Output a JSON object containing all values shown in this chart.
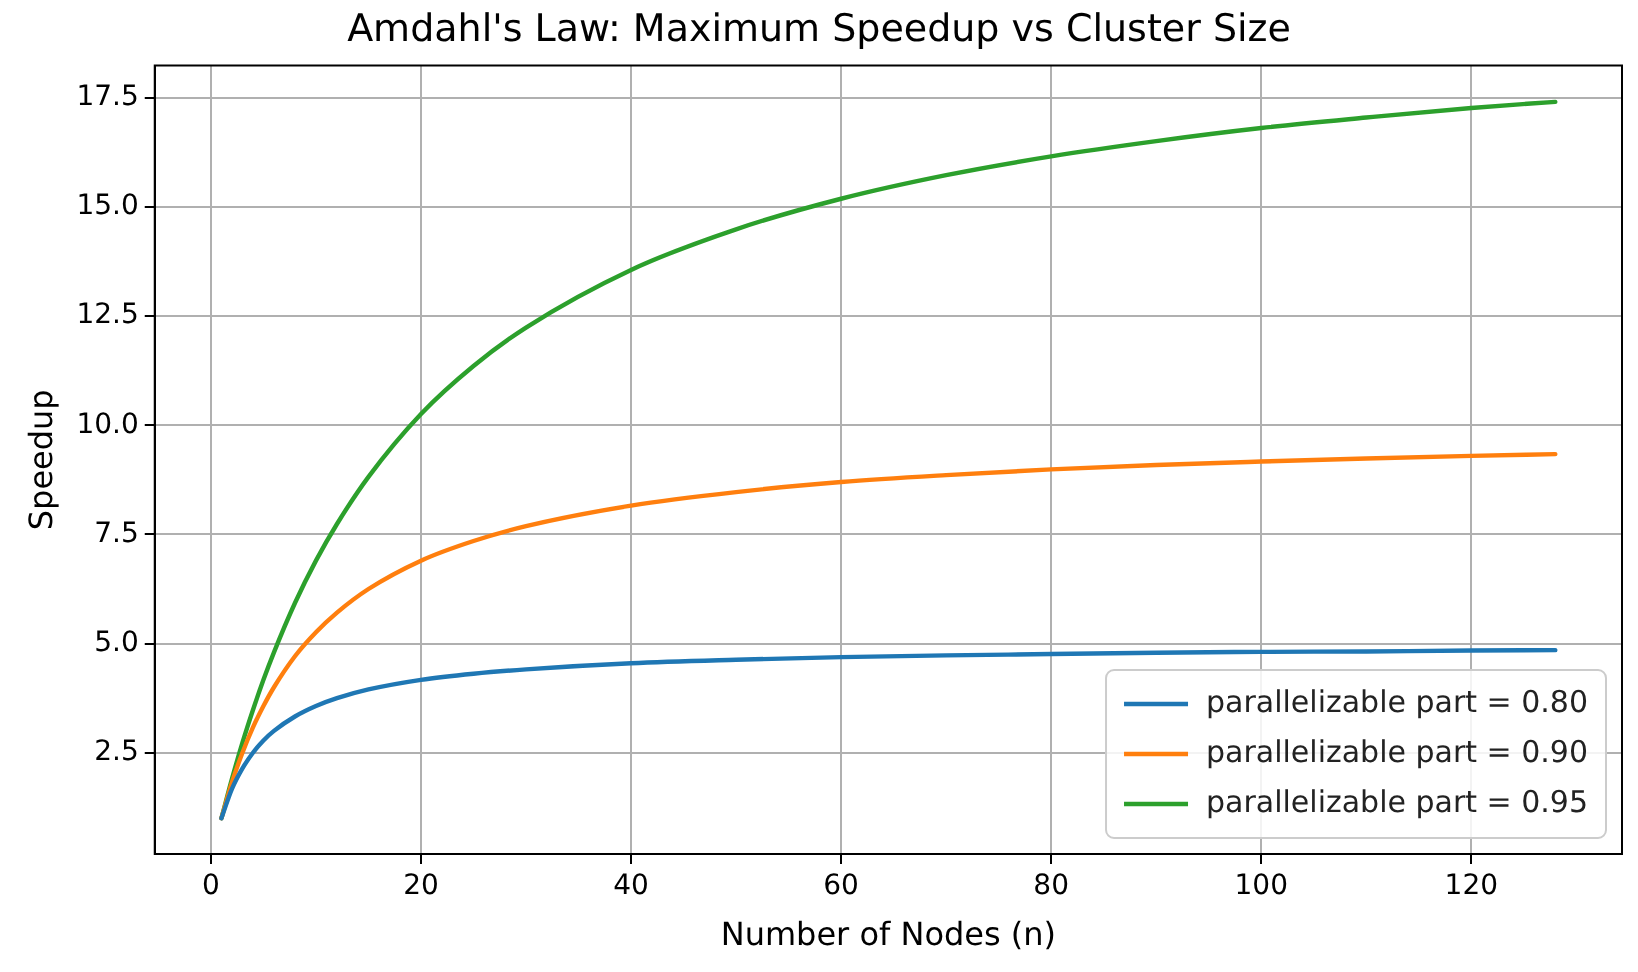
{
  "chart_data": {
    "type": "line",
    "title": "Amdahl's Law: Maximum Speedup vs Cluster Size",
    "xlabel": "Number of Nodes (n)",
    "ylabel": "Speedup",
    "x": [
      1,
      2,
      3,
      4,
      5,
      6,
      8,
      10,
      12,
      15,
      20,
      25,
      30,
      40,
      50,
      60,
      70,
      80,
      90,
      100,
      110,
      120,
      128
    ],
    "series": [
      {
        "name": "parallelizable part = 0.80",
        "color": "#1f77b4",
        "values": [
          1,
          1.67,
          2.14,
          2.5,
          2.78,
          3.0,
          3.33,
          3.57,
          3.75,
          3.95,
          4.17,
          4.31,
          4.41,
          4.55,
          4.63,
          4.69,
          4.73,
          4.76,
          4.79,
          4.81,
          4.82,
          4.84,
          4.85
        ]
      },
      {
        "name": "parallelizable part = 0.90",
        "color": "#ff7f0e",
        "values": [
          1,
          1.82,
          2.5,
          3.08,
          3.57,
          4.0,
          4.71,
          5.26,
          5.71,
          6.25,
          6.9,
          7.35,
          7.69,
          8.16,
          8.47,
          8.7,
          8.86,
          8.99,
          9.09,
          9.17,
          9.24,
          9.3,
          9.34
        ]
      },
      {
        "name": "parallelizable part = 0.95",
        "color": "#2ca02c",
        "values": [
          1,
          1.9,
          2.73,
          3.48,
          4.17,
          4.8,
          5.93,
          6.9,
          7.74,
          8.82,
          10.26,
          11.36,
          12.24,
          13.56,
          14.49,
          15.19,
          15.73,
          16.16,
          16.51,
          16.81,
          17.05,
          17.27,
          17.41
        ]
      }
    ],
    "xlim": [
      -5.35,
      134.35
    ],
    "xticks": [
      0,
      20,
      40,
      60,
      80,
      100,
      120
    ],
    "ylim": [
      0.18,
      18.24
    ],
    "yticks": [
      2.5,
      {
        "value": 5,
        "label": "5.0"
      },
      7.5,
      {
        "value": 10,
        "label": "10.0"
      },
      12.5,
      {
        "value": 15,
        "label": "15.0"
      },
      17.5
    ],
    "grid": true,
    "legend": "bottom right",
    "marker": "none",
    "line_style": "solid"
  }
}
